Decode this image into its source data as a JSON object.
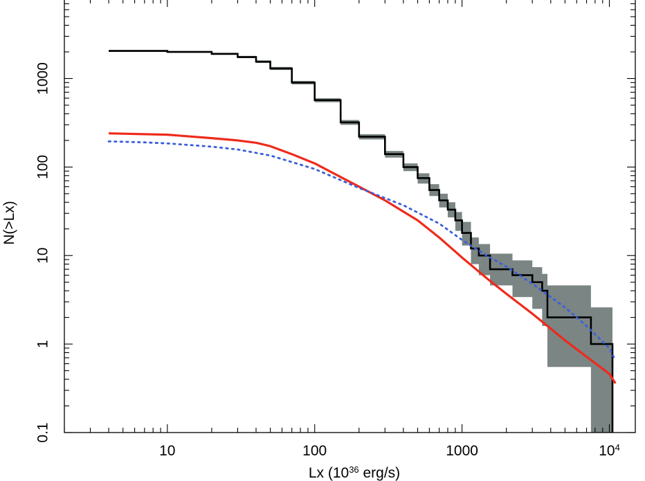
{
  "chart_data": {
    "type": "line",
    "xscale": "log",
    "yscale": "log",
    "xlim": [
      2,
      15000
    ],
    "ylim": [
      0.1,
      8000
    ],
    "xlabel": {
      "base": "Lx (10",
      "exp": "36",
      "rest": " erg/s)"
    },
    "ylabel": "N(>Lx)",
    "grid": false,
    "legend": "none",
    "x_ticks": [
      {
        "value": 10,
        "label": "10"
      },
      {
        "value": 100,
        "label": "100"
      },
      {
        "value": 1000,
        "label": "1000"
      },
      {
        "value": 10000,
        "label": "10",
        "sup": "4"
      }
    ],
    "y_ticks": [
      {
        "value": 0.1,
        "label": "0.1"
      },
      {
        "value": 1,
        "label": "1"
      },
      {
        "value": 10,
        "label": "10"
      },
      {
        "value": 100,
        "label": "100"
      },
      {
        "value": 1000,
        "label": "1000"
      }
    ],
    "series": [
      {
        "style": "step",
        "color": "#000000",
        "band_color": "#7a8584",
        "x": [
          4,
          10,
          20,
          30,
          40,
          50,
          70,
          100,
          150,
          200,
          300,
          400,
          500,
          600,
          700,
          800,
          900,
          1000,
          1150,
          1300,
          1550,
          2200,
          3000,
          3500,
          3800,
          7500,
          10500
        ],
        "y": [
          2050,
          2000,
          1900,
          1750,
          1550,
          1300,
          900,
          570,
          320,
          220,
          140,
          100,
          75,
          55,
          42,
          33,
          25,
          18,
          12,
          10,
          7,
          6,
          5,
          4,
          2,
          1,
          0.1
        ],
        "band_lower": [
          2000,
          1950,
          1850,
          1700,
          1500,
          1250,
          860,
          540,
          300,
          205,
          128,
          90,
          65,
          47,
          35,
          27,
          19,
          13,
          8,
          6,
          4.6,
          3.4,
          2.5,
          1.6,
          0.55,
          0.1,
          0.1
        ],
        "band_upper": [
          2100,
          2050,
          1950,
          1800,
          1600,
          1350,
          940,
          600,
          340,
          235,
          152,
          110,
          85,
          64,
          50,
          40,
          31,
          24,
          16,
          13.5,
          10.5,
          8.8,
          7.4,
          6.2,
          4.6,
          2.6,
          2.6
        ]
      },
      {
        "style": "solid",
        "color": "#ee2a1b",
        "x": [
          4,
          10,
          20,
          30,
          40,
          50,
          70,
          100,
          200,
          300,
          500,
          700,
          1000,
          1500,
          2000,
          3000,
          5000,
          7000,
          10000,
          11000
        ],
        "y": [
          240,
          232,
          212,
          200,
          188,
          172,
          140,
          110,
          60,
          42,
          25,
          16,
          9.5,
          5.4,
          3.7,
          2.2,
          1.1,
          0.72,
          0.46,
          0.36
        ]
      },
      {
        "style": "dotted",
        "color": "#3b5fd9",
        "x": [
          4,
          7,
          10,
          20,
          30,
          50,
          100,
          200,
          400,
          700,
          1000,
          1500,
          2000,
          3000,
          5000,
          7000,
          10000,
          11000
        ],
        "y": [
          195,
          190,
          185,
          170,
          158,
          135,
          95,
          58,
          37,
          23,
          15,
          9.8,
          7.5,
          4.8,
          2.6,
          1.6,
          0.9,
          0.65
        ]
      }
    ]
  }
}
